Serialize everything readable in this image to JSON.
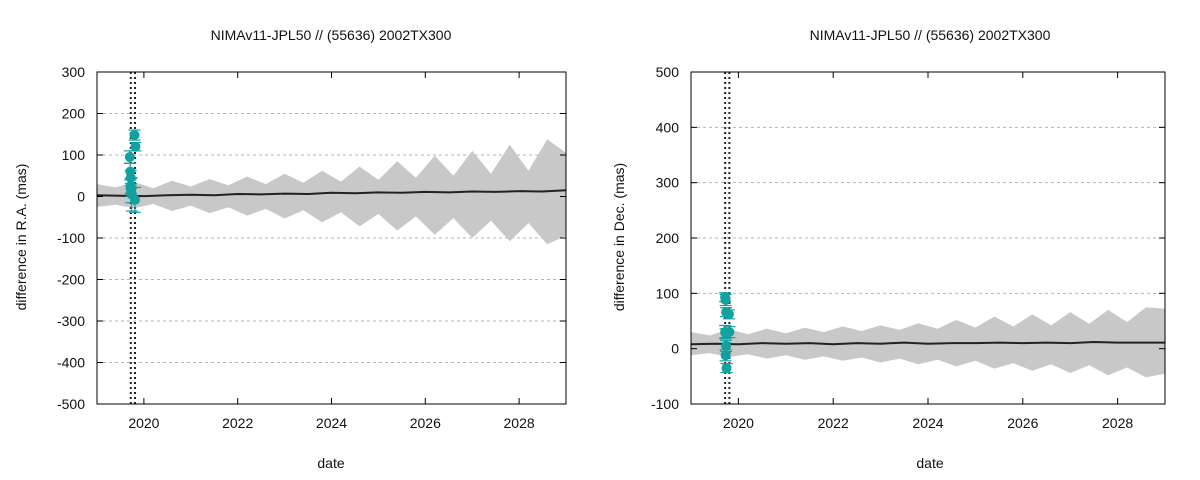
{
  "colors": {
    "band": "#c8c8c8",
    "line": "#222222",
    "points": "#12a1a0",
    "grid": "#b5b5b5",
    "frame": "#000000"
  },
  "chart_data": [
    {
      "type": "line",
      "title": "NIMAv11-JPL50 // (55636) 2002TX300",
      "xlabel": "date",
      "ylabel": "difference in R.A. (mas)",
      "xlim": [
        2019.0,
        2029.0
      ],
      "ylim": [
        -500,
        300
      ],
      "xticks": [
        2020,
        2022,
        2024,
        2026,
        2028
      ],
      "yticks": [
        -500,
        -400,
        -300,
        -200,
        -100,
        0,
        100,
        200,
        300
      ],
      "grid": true,
      "vlines": [
        2019.72,
        2019.81
      ],
      "band": {
        "name": "uncertainty envelope",
        "x": [
          2019.0,
          2019.4,
          2019.8,
          2020.2,
          2020.6,
          2021.0,
          2021.4,
          2021.8,
          2022.2,
          2022.6,
          2023.0,
          2023.4,
          2023.8,
          2024.2,
          2024.6,
          2025.0,
          2025.4,
          2025.8,
          2026.2,
          2026.6,
          2027.0,
          2027.4,
          2027.8,
          2028.2,
          2028.6,
          2029.0
        ],
        "upper": [
          30,
          22,
          35,
          20,
          38,
          24,
          42,
          27,
          48,
          30,
          55,
          33,
          62,
          36,
          72,
          40,
          85,
          45,
          98,
          50,
          110,
          55,
          125,
          62,
          138,
          105
        ],
        "lower": [
          -25,
          -20,
          -28,
          -18,
          -35,
          -22,
          -40,
          -26,
          -46,
          -30,
          -53,
          -33,
          -62,
          -38,
          -72,
          -42,
          -82,
          -48,
          -92,
          -52,
          -100,
          -58,
          -108,
          -64,
          -115,
          -95
        ]
      },
      "series": [
        {
          "name": "nominal difference",
          "x": [
            2019.0,
            2019.5,
            2020.0,
            2020.5,
            2021.0,
            2021.5,
            2022.0,
            2022.5,
            2023.0,
            2023.5,
            2024.0,
            2024.5,
            2025.0,
            2025.5,
            2026.0,
            2026.5,
            2027.0,
            2027.5,
            2028.0,
            2028.5,
            2029.0
          ],
          "y": [
            3,
            2,
            1,
            3,
            4,
            3,
            6,
            5,
            7,
            6,
            9,
            8,
            10,
            9,
            11,
            10,
            12,
            11,
            13,
            12,
            15
          ]
        }
      ],
      "observations": {
        "x": [
          2019.7,
          2019.71,
          2019.72,
          2019.72,
          2019.73,
          2019.72,
          2019.73,
          2019.74,
          2019.8,
          2019.82,
          2019.81
        ],
        "y": [
          95,
          60,
          45,
          20,
          15,
          25,
          10,
          5,
          148,
          120,
          -8
        ],
        "err": [
          15,
          20,
          18,
          12,
          30,
          18,
          10,
          40,
          12,
          10,
          30
        ]
      }
    },
    {
      "type": "line",
      "title": "NIMAv11-JPL50 // (55636) 2002TX300",
      "xlabel": "date",
      "ylabel": "difference in Dec. (mas)",
      "xlim": [
        2019.0,
        2029.0
      ],
      "ylim": [
        -100,
        500
      ],
      "xticks": [
        2020,
        2022,
        2024,
        2026,
        2028
      ],
      "yticks": [
        -100,
        0,
        100,
        200,
        300,
        400,
        500
      ],
      "grid": true,
      "vlines": [
        2019.72,
        2019.81
      ],
      "band": {
        "name": "uncertainty envelope",
        "x": [
          2019.0,
          2019.4,
          2019.8,
          2020.2,
          2020.6,
          2021.0,
          2021.4,
          2021.8,
          2022.2,
          2022.6,
          2023.0,
          2023.4,
          2023.8,
          2024.2,
          2024.6,
          2025.0,
          2025.4,
          2025.8,
          2026.2,
          2026.6,
          2027.0,
          2027.4,
          2027.8,
          2028.2,
          2028.6,
          2029.0
        ],
        "upper": [
          30,
          24,
          35,
          26,
          36,
          28,
          38,
          30,
          40,
          32,
          42,
          34,
          46,
          36,
          52,
          38,
          58,
          40,
          62,
          42,
          66,
          45,
          70,
          48,
          75,
          72
        ],
        "lower": [
          -12,
          -8,
          -15,
          -10,
          -18,
          -12,
          -20,
          -14,
          -22,
          -16,
          -25,
          -18,
          -28,
          -20,
          -32,
          -22,
          -36,
          -26,
          -40,
          -28,
          -44,
          -30,
          -48,
          -34,
          -52,
          -45
        ]
      },
      "series": [
        {
          "name": "nominal difference",
          "x": [
            2019.0,
            2019.5,
            2020.0,
            2020.5,
            2021.0,
            2021.5,
            2022.0,
            2022.5,
            2023.0,
            2023.5,
            2024.0,
            2024.5,
            2025.0,
            2025.5,
            2026.0,
            2026.5,
            2027.0,
            2027.5,
            2028.0,
            2028.5,
            2029.0
          ],
          "y": [
            8,
            9,
            8,
            10,
            9,
            10,
            8,
            10,
            9,
            11,
            9,
            10,
            10,
            11,
            10,
            11,
            10,
            12,
            11,
            11,
            11
          ]
        }
      ],
      "observations": {
        "x": [
          2019.72,
          2019.73,
          2019.72,
          2019.73,
          2019.74,
          2019.73,
          2019.74,
          2019.75,
          2019.81,
          2019.8
        ],
        "y": [
          93,
          88,
          30,
          28,
          5,
          -12,
          66,
          -35,
          30,
          62
        ],
        "err": [
          8,
          10,
          12,
          8,
          10,
          10,
          8,
          8,
          10,
          8
        ]
      }
    }
  ]
}
